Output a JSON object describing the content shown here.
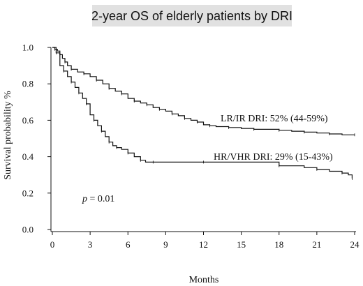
{
  "chart_data": {
    "type": "line",
    "title": "2-year OS of elderly patients by DRI",
    "xlabel": "Months",
    "ylabel": "Survival probability %",
    "xlim": [
      0,
      24
    ],
    "ylim": [
      0,
      1.0
    ],
    "xticks": [
      "0",
      "3",
      "6",
      "9",
      "12",
      "15",
      "18",
      "21",
      "24"
    ],
    "yticks": [
      "0.0",
      "0.2",
      "0.4",
      "0.6",
      "0.8",
      "1.0"
    ],
    "grid": false,
    "series": [
      {
        "name": "LR/IR DRI",
        "label": "LR/IR DRI: 52% (44-59%)",
        "color": "#111111",
        "x": [
          0,
          0.2,
          0.4,
          0.6,
          0.8,
          1.0,
          1.2,
          1.5,
          2.0,
          2.5,
          3.0,
          3.5,
          4.0,
          4.5,
          5.0,
          5.5,
          6.0,
          6.5,
          7.0,
          7.5,
          8.0,
          8.5,
          9.0,
          9.5,
          10.0,
          10.5,
          11.0,
          11.5,
          12.0,
          12.5,
          13.0,
          14.0,
          15.0,
          16.0,
          17.0,
          18.0,
          19.0,
          20.0,
          21.0,
          22.0,
          23.0,
          24.0
        ],
        "y": [
          1.0,
          0.99,
          0.98,
          0.96,
          0.94,
          0.92,
          0.9,
          0.88,
          0.865,
          0.855,
          0.84,
          0.82,
          0.8,
          0.775,
          0.76,
          0.745,
          0.72,
          0.705,
          0.695,
          0.685,
          0.67,
          0.66,
          0.65,
          0.635,
          0.625,
          0.61,
          0.6,
          0.59,
          0.575,
          0.57,
          0.565,
          0.56,
          0.555,
          0.55,
          0.55,
          0.545,
          0.54,
          0.535,
          0.53,
          0.525,
          0.52,
          0.52
        ]
      },
      {
        "name": "HR/VHR DRI",
        "label": "HR/VHR DRI: 29% (15-43%)",
        "color": "#111111",
        "x": [
          0,
          0.3,
          0.6,
          0.9,
          1.2,
          1.5,
          1.8,
          2.1,
          2.4,
          2.7,
          3.0,
          3.3,
          3.6,
          3.9,
          4.2,
          4.5,
          4.8,
          5.1,
          5.5,
          6.0,
          6.5,
          7.0,
          7.4,
          8.0,
          10.0,
          12.0,
          15.0,
          18.0,
          20.0,
          21.0,
          22.0,
          23.0,
          23.5,
          23.8
        ],
        "y": [
          1.0,
          0.97,
          0.9,
          0.87,
          0.84,
          0.81,
          0.78,
          0.75,
          0.72,
          0.69,
          0.63,
          0.6,
          0.57,
          0.54,
          0.51,
          0.48,
          0.46,
          0.45,
          0.44,
          0.42,
          0.4,
          0.38,
          0.37,
          0.37,
          0.37,
          0.37,
          0.37,
          0.35,
          0.34,
          0.33,
          0.32,
          0.31,
          0.3,
          0.28
        ]
      }
    ],
    "annotations": [
      {
        "id": "p-value",
        "italic": "p",
        "text": " = 0.01"
      }
    ]
  }
}
